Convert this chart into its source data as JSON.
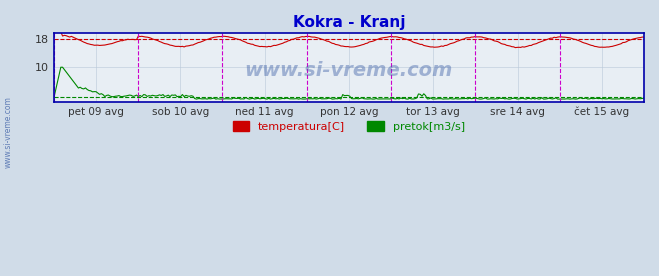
{
  "title": "Kokra - Kranj",
  "title_color": "#0000cc",
  "bg_color": "#d0dce8",
  "plot_bg_color": "#e8eef4",
  "grid_color": "#b8c8d8",
  "border_color": "#0000aa",
  "xlabel_ticks": [
    "pet 09 avg",
    "sob 10 avg",
    "ned 11 avg",
    "pon 12 avg",
    "tor 13 avg",
    "sre 14 avg",
    "čet 15 avg"
  ],
  "day_boundaries": [
    0.0,
    0.1429,
    0.2857,
    0.4286,
    0.5714,
    0.7143,
    0.8571,
    1.0
  ],
  "ylim": [
    0,
    20
  ],
  "y_ticks": [
    10,
    18
  ],
  "temp_color": "#cc0000",
  "flow_color": "#008800",
  "temp_avg_line": 18.0,
  "flow_avg_line": 1.5,
  "watermark": "www.si-vreme.com",
  "watermark_color": "#4466aa",
  "legend_temp": "temperatura[C]",
  "legend_flow": "pretok[m3/s]",
  "vline_color": "#cc00cc",
  "sidebar_text": "www.si-vreme.com"
}
